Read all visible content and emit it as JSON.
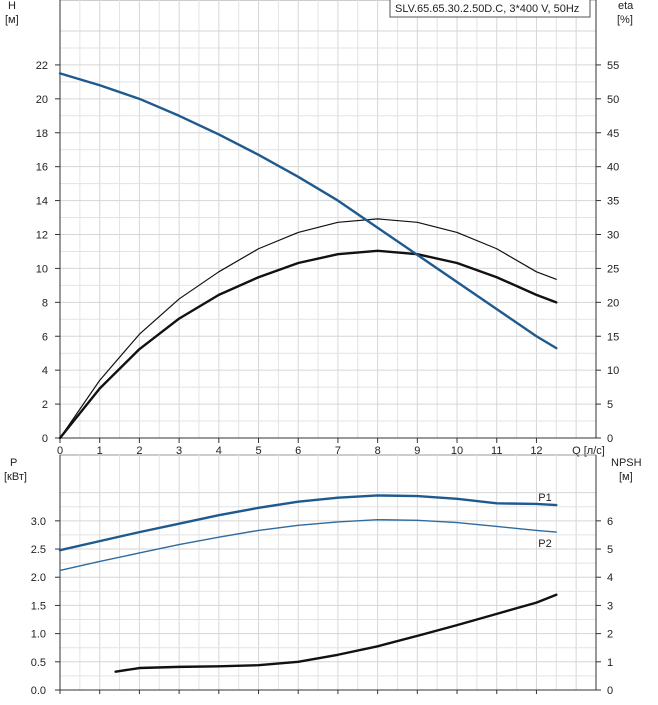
{
  "colors": {
    "head_curve": "#1f5a8f",
    "eff_curve": "#111111",
    "p1": "#1f5a8f",
    "p2": "#2f6b9f",
    "npsh": "#111111",
    "grid": "#e3e3e3"
  },
  "chart_data": [
    {
      "type": "line",
      "name": "upper",
      "title": "SLV.65.65.30.2.50D.C, 3*400 V, 50Hz",
      "ylabel_left": "H",
      "ylabel_left_unit": "[м]",
      "ylabel_right": "eta",
      "ylabel_right_unit": "[%]",
      "xlabel": "Q [л/с]",
      "xlim": [
        0,
        13.5
      ],
      "ylim_left": [
        0,
        24
      ],
      "ylim_right": [
        0,
        60
      ],
      "x_ticks": [
        0,
        1,
        2,
        3,
        4,
        5,
        6,
        7,
        8,
        9,
        10,
        11,
        12
      ],
      "y_left_ticks": [
        0,
        2,
        4,
        6,
        8,
        10,
        12,
        14,
        16,
        18,
        20,
        22
      ],
      "y_right_ticks": [
        0,
        5,
        10,
        15,
        20,
        25,
        30,
        35,
        40,
        45,
        50,
        55
      ],
      "grid": true,
      "series": [
        {
          "key": "head",
          "axis": "left",
          "x": [
            0,
            1,
            2,
            3,
            4,
            5,
            6,
            7,
            8,
            9,
            10,
            11,
            12,
            12.5
          ],
          "y": [
            21.5,
            20.8,
            20.0,
            19.0,
            17.9,
            16.7,
            15.4,
            14.0,
            12.4,
            10.8,
            9.2,
            7.6,
            6.0,
            5.3
          ]
        },
        {
          "key": "eff_thin",
          "axis": "right",
          "x": [
            0,
            1,
            2,
            3,
            4,
            5,
            6,
            7,
            8,
            9,
            10,
            11,
            12,
            12.5
          ],
          "y": [
            0,
            8.5,
            15.3,
            20.5,
            24.5,
            27.9,
            30.3,
            31.8,
            32.3,
            31.8,
            30.3,
            27.9,
            24.5,
            23.4
          ]
        },
        {
          "key": "eff_thick",
          "axis": "right",
          "x": [
            0,
            1,
            2,
            3,
            4,
            5,
            6,
            7,
            8,
            9,
            10,
            11,
            12,
            12.5
          ],
          "y": [
            0,
            7.3,
            13.1,
            17.6,
            21.1,
            23.7,
            25.8,
            27.1,
            27.6,
            27.1,
            25.8,
            23.7,
            21.1,
            20.0
          ]
        }
      ]
    },
    {
      "type": "line",
      "name": "lower",
      "ylabel_left": "P",
      "ylabel_left_unit": "[кВт]",
      "ylabel_right": "NPSH",
      "ylabel_right_unit": "[м]",
      "xlim": [
        0,
        13.5
      ],
      "ylim_left": [
        0,
        3.6
      ],
      "ylim_right": [
        0,
        7.2
      ],
      "y_left_ticks": [
        "0.0",
        "0.5",
        "1.0",
        "1.5",
        "2.0",
        "2.5",
        "3.0"
      ],
      "y_right_ticks": [
        0,
        1,
        2,
        3,
        4,
        5,
        6
      ],
      "grid": true,
      "labels": {
        "p1": "P1",
        "p2": "P2"
      },
      "series": [
        {
          "key": "p1",
          "axis": "left",
          "label": "P1",
          "x": [
            0,
            1,
            2,
            3,
            4,
            5,
            6,
            7,
            8,
            9,
            10,
            11,
            12,
            12.5
          ],
          "y": [
            2.48,
            2.64,
            2.8,
            2.95,
            3.1,
            3.23,
            3.34,
            3.41,
            3.45,
            3.44,
            3.39,
            3.31,
            3.3,
            3.28
          ]
        },
        {
          "key": "p2",
          "axis": "left",
          "label": "P2",
          "x": [
            0,
            1,
            2,
            3,
            4,
            5,
            6,
            7,
            8,
            9,
            10,
            11,
            12,
            12.5
          ],
          "y": [
            2.12,
            2.28,
            2.43,
            2.58,
            2.71,
            2.83,
            2.92,
            2.98,
            3.02,
            3.01,
            2.97,
            2.9,
            2.83,
            2.8
          ]
        },
        {
          "key": "npsh",
          "axis": "right",
          "x": [
            1.4,
            2,
            3,
            4,
            5,
            6,
            7,
            8,
            9,
            10,
            11,
            12,
            12.5
          ],
          "y": [
            0.65,
            0.78,
            0.82,
            0.84,
            0.88,
            1.0,
            1.25,
            1.55,
            1.92,
            2.3,
            2.7,
            3.1,
            3.38
          ]
        }
      ]
    }
  ]
}
